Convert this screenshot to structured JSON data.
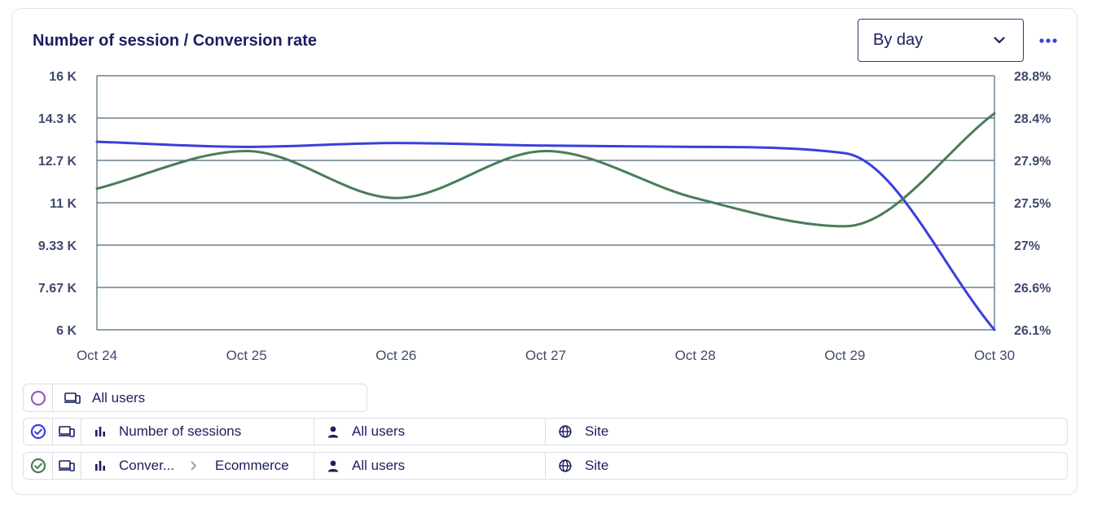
{
  "widget": {
    "title": "Number of session / Conversion rate",
    "period_select": {
      "value": "By day"
    },
    "more_icon": "more-horizontal-icon"
  },
  "legend": {
    "group": {
      "label": "All users",
      "color": "#9b59c6"
    },
    "series_rows": [
      {
        "color": "#3a3fdd",
        "metric": "Number of sessions",
        "segment": "All users",
        "scope": "Site"
      },
      {
        "color": "#4a7c59",
        "metric": "Conver...",
        "submetric": "Ecommerce",
        "segment": "All users",
        "scope": "Site"
      }
    ]
  },
  "colors": {
    "sessions": "#3a3fdd",
    "conversion": "#4a7c59",
    "grid": "#4d6677"
  },
  "chart_data": {
    "type": "line",
    "categories": [
      "Oct 24",
      "Oct 25",
      "Oct 26",
      "Oct 27",
      "Oct 28",
      "Oct 29",
      "Oct 30"
    ],
    "y_left_ticks": [
      "6 K",
      "7.67 K",
      "9.33 K",
      "11 K",
      "12.7 K",
      "14.3 K",
      "16 K"
    ],
    "y_right_ticks": [
      "26.1%",
      "26.6%",
      "27%",
      "27.5%",
      "27.9%",
      "28.4%",
      "28.8%"
    ],
    "y_left_range": [
      6000,
      16000
    ],
    "y_right_range": [
      26.1,
      28.8
    ],
    "grid": true,
    "series": [
      {
        "name": "Number of sessions",
        "axis": "left",
        "values": [
          13400,
          13200,
          13350,
          13250,
          13200,
          12950,
          6000
        ]
      },
      {
        "name": "Conversion rate",
        "axis": "right",
        "values": [
          27.6,
          28.0,
          27.5,
          28.0,
          27.5,
          27.2,
          28.4
        ]
      }
    ]
  }
}
